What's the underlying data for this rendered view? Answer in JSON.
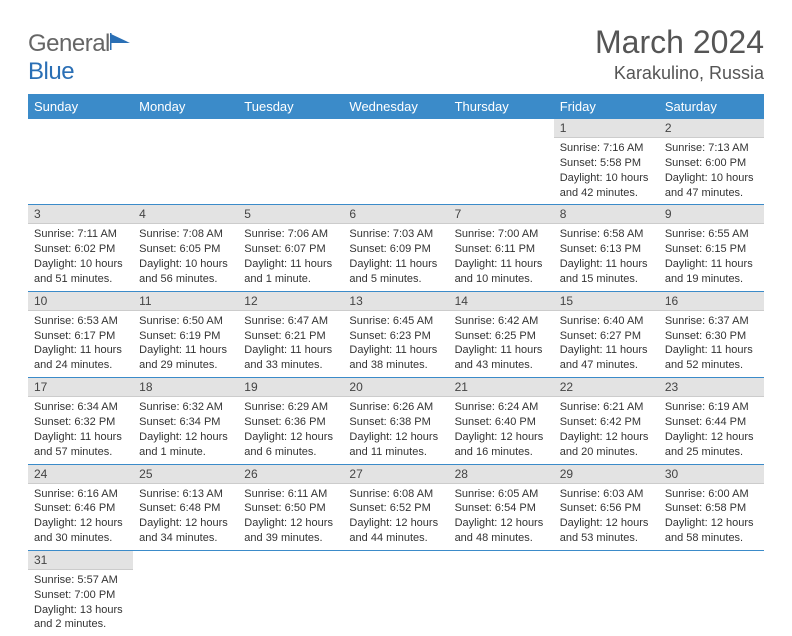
{
  "logo": {
    "text_gray": "General",
    "text_blue": "Blue"
  },
  "title": "March 2024",
  "location": "Karakulino, Russia",
  "weekday_labels": [
    "Sunday",
    "Monday",
    "Tuesday",
    "Wednesday",
    "Thursday",
    "Friday",
    "Saturday"
  ],
  "colors": {
    "header_bg": "#3b8bc9",
    "row_divider": "#3b8bc9",
    "daynum_bg": "#e3e3e3"
  },
  "grid": [
    [
      {
        "empty": true
      },
      {
        "empty": true
      },
      {
        "empty": true
      },
      {
        "empty": true
      },
      {
        "empty": true
      },
      {
        "day": "1",
        "sunrise": "Sunrise: 7:16 AM",
        "sunset": "Sunset: 5:58 PM",
        "daylight": "Daylight: 10 hours and 42 minutes."
      },
      {
        "day": "2",
        "sunrise": "Sunrise: 7:13 AM",
        "sunset": "Sunset: 6:00 PM",
        "daylight": "Daylight: 10 hours and 47 minutes."
      }
    ],
    [
      {
        "day": "3",
        "sunrise": "Sunrise: 7:11 AM",
        "sunset": "Sunset: 6:02 PM",
        "daylight": "Daylight: 10 hours and 51 minutes."
      },
      {
        "day": "4",
        "sunrise": "Sunrise: 7:08 AM",
        "sunset": "Sunset: 6:05 PM",
        "daylight": "Daylight: 10 hours and 56 minutes."
      },
      {
        "day": "5",
        "sunrise": "Sunrise: 7:06 AM",
        "sunset": "Sunset: 6:07 PM",
        "daylight": "Daylight: 11 hours and 1 minute."
      },
      {
        "day": "6",
        "sunrise": "Sunrise: 7:03 AM",
        "sunset": "Sunset: 6:09 PM",
        "daylight": "Daylight: 11 hours and 5 minutes."
      },
      {
        "day": "7",
        "sunrise": "Sunrise: 7:00 AM",
        "sunset": "Sunset: 6:11 PM",
        "daylight": "Daylight: 11 hours and 10 minutes."
      },
      {
        "day": "8",
        "sunrise": "Sunrise: 6:58 AM",
        "sunset": "Sunset: 6:13 PM",
        "daylight": "Daylight: 11 hours and 15 minutes."
      },
      {
        "day": "9",
        "sunrise": "Sunrise: 6:55 AM",
        "sunset": "Sunset: 6:15 PM",
        "daylight": "Daylight: 11 hours and 19 minutes."
      }
    ],
    [
      {
        "day": "10",
        "sunrise": "Sunrise: 6:53 AM",
        "sunset": "Sunset: 6:17 PM",
        "daylight": "Daylight: 11 hours and 24 minutes."
      },
      {
        "day": "11",
        "sunrise": "Sunrise: 6:50 AM",
        "sunset": "Sunset: 6:19 PM",
        "daylight": "Daylight: 11 hours and 29 minutes."
      },
      {
        "day": "12",
        "sunrise": "Sunrise: 6:47 AM",
        "sunset": "Sunset: 6:21 PM",
        "daylight": "Daylight: 11 hours and 33 minutes."
      },
      {
        "day": "13",
        "sunrise": "Sunrise: 6:45 AM",
        "sunset": "Sunset: 6:23 PM",
        "daylight": "Daylight: 11 hours and 38 minutes."
      },
      {
        "day": "14",
        "sunrise": "Sunrise: 6:42 AM",
        "sunset": "Sunset: 6:25 PM",
        "daylight": "Daylight: 11 hours and 43 minutes."
      },
      {
        "day": "15",
        "sunrise": "Sunrise: 6:40 AM",
        "sunset": "Sunset: 6:27 PM",
        "daylight": "Daylight: 11 hours and 47 minutes."
      },
      {
        "day": "16",
        "sunrise": "Sunrise: 6:37 AM",
        "sunset": "Sunset: 6:30 PM",
        "daylight": "Daylight: 11 hours and 52 minutes."
      }
    ],
    [
      {
        "day": "17",
        "sunrise": "Sunrise: 6:34 AM",
        "sunset": "Sunset: 6:32 PM",
        "daylight": "Daylight: 11 hours and 57 minutes."
      },
      {
        "day": "18",
        "sunrise": "Sunrise: 6:32 AM",
        "sunset": "Sunset: 6:34 PM",
        "daylight": "Daylight: 12 hours and 1 minute."
      },
      {
        "day": "19",
        "sunrise": "Sunrise: 6:29 AM",
        "sunset": "Sunset: 6:36 PM",
        "daylight": "Daylight: 12 hours and 6 minutes."
      },
      {
        "day": "20",
        "sunrise": "Sunrise: 6:26 AM",
        "sunset": "Sunset: 6:38 PM",
        "daylight": "Daylight: 12 hours and 11 minutes."
      },
      {
        "day": "21",
        "sunrise": "Sunrise: 6:24 AM",
        "sunset": "Sunset: 6:40 PM",
        "daylight": "Daylight: 12 hours and 16 minutes."
      },
      {
        "day": "22",
        "sunrise": "Sunrise: 6:21 AM",
        "sunset": "Sunset: 6:42 PM",
        "daylight": "Daylight: 12 hours and 20 minutes."
      },
      {
        "day": "23",
        "sunrise": "Sunrise: 6:19 AM",
        "sunset": "Sunset: 6:44 PM",
        "daylight": "Daylight: 12 hours and 25 minutes."
      }
    ],
    [
      {
        "day": "24",
        "sunrise": "Sunrise: 6:16 AM",
        "sunset": "Sunset: 6:46 PM",
        "daylight": "Daylight: 12 hours and 30 minutes."
      },
      {
        "day": "25",
        "sunrise": "Sunrise: 6:13 AM",
        "sunset": "Sunset: 6:48 PM",
        "daylight": "Daylight: 12 hours and 34 minutes."
      },
      {
        "day": "26",
        "sunrise": "Sunrise: 6:11 AM",
        "sunset": "Sunset: 6:50 PM",
        "daylight": "Daylight: 12 hours and 39 minutes."
      },
      {
        "day": "27",
        "sunrise": "Sunrise: 6:08 AM",
        "sunset": "Sunset: 6:52 PM",
        "daylight": "Daylight: 12 hours and 44 minutes."
      },
      {
        "day": "28",
        "sunrise": "Sunrise: 6:05 AM",
        "sunset": "Sunset: 6:54 PM",
        "daylight": "Daylight: 12 hours and 48 minutes."
      },
      {
        "day": "29",
        "sunrise": "Sunrise: 6:03 AM",
        "sunset": "Sunset: 6:56 PM",
        "daylight": "Daylight: 12 hours and 53 minutes."
      },
      {
        "day": "30",
        "sunrise": "Sunrise: 6:00 AM",
        "sunset": "Sunset: 6:58 PM",
        "daylight": "Daylight: 12 hours and 58 minutes."
      }
    ],
    [
      {
        "day": "31",
        "sunrise": "Sunrise: 5:57 AM",
        "sunset": "Sunset: 7:00 PM",
        "daylight": "Daylight: 13 hours and 2 minutes."
      },
      {
        "empty": true
      },
      {
        "empty": true
      },
      {
        "empty": true
      },
      {
        "empty": true
      },
      {
        "empty": true
      },
      {
        "empty": true
      }
    ]
  ]
}
